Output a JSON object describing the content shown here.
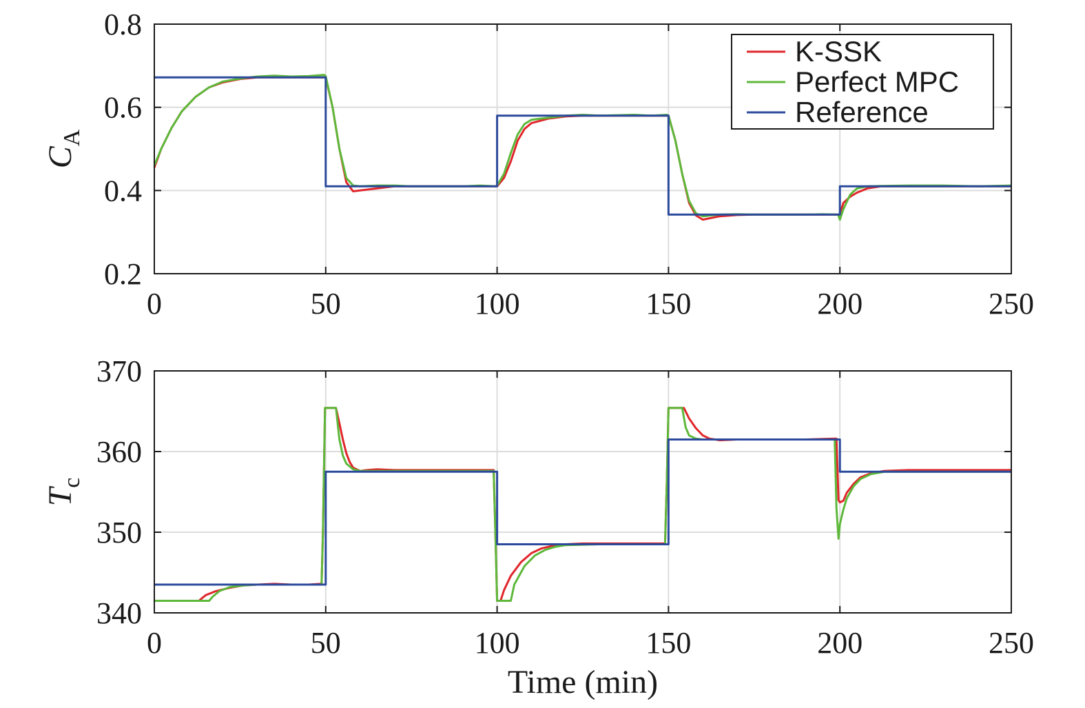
{
  "chart_data": [
    {
      "type": "line",
      "ylabel": "C",
      "ylabel_sub": "A",
      "xlabel": "",
      "xlim": [
        0,
        250
      ],
      "ylim": [
        0.2,
        0.8
      ],
      "xticks": [
        "0",
        "50",
        "100",
        "150",
        "200",
        "250"
      ],
      "yticks": [
        "0.2",
        "0.4",
        "0.6",
        "0.8"
      ],
      "grid": true,
      "legend_position": "top-right",
      "series": [
        {
          "name": "K-SSK",
          "color": "#e0262b",
          "x": [
            0,
            2,
            5,
            8,
            12,
            16,
            20,
            25,
            30,
            35,
            40,
            45,
            49.5,
            50,
            52,
            54,
            56,
            58,
            60,
            65,
            70,
            75,
            80,
            85,
            90,
            95,
            99.5,
            100,
            102,
            104,
            106,
            108,
            110,
            115,
            120,
            125,
            130,
            135,
            140,
            145,
            149.5,
            150,
            152,
            154,
            156,
            158,
            160,
            165,
            170,
            175,
            180,
            185,
            190,
            195,
            199.5,
            200,
            201,
            203,
            205,
            208,
            212,
            220,
            230,
            240,
            250
          ],
          "y": [
            0.455,
            0.5,
            0.55,
            0.59,
            0.625,
            0.648,
            0.66,
            0.668,
            0.672,
            0.672,
            0.672,
            0.672,
            0.672,
            0.672,
            0.6,
            0.5,
            0.42,
            0.398,
            0.4,
            0.405,
            0.41,
            0.41,
            0.41,
            0.41,
            0.41,
            0.41,
            0.41,
            0.41,
            0.43,
            0.47,
            0.52,
            0.548,
            0.562,
            0.573,
            0.578,
            0.58,
            0.58,
            0.58,
            0.58,
            0.58,
            0.58,
            0.58,
            0.52,
            0.44,
            0.37,
            0.34,
            0.33,
            0.338,
            0.341,
            0.342,
            0.342,
            0.342,
            0.342,
            0.342,
            0.342,
            0.342,
            0.37,
            0.385,
            0.395,
            0.405,
            0.41,
            0.41,
            0.41,
            0.41,
            0.41
          ]
        },
        {
          "name": "Perfect MPC",
          "color": "#5db83a",
          "x": [
            0,
            2,
            5,
            8,
            12,
            16,
            20,
            25,
            30,
            35,
            40,
            45,
            49.5,
            50,
            52,
            54,
            56,
            58,
            60,
            65,
            70,
            75,
            80,
            85,
            90,
            95,
            99.5,
            100,
            102,
            104,
            106,
            108,
            110,
            115,
            120,
            125,
            130,
            135,
            140,
            145,
            149.5,
            150,
            152,
            154,
            156,
            158,
            160,
            165,
            170,
            175,
            180,
            185,
            190,
            195,
            199.5,
            200,
            201,
            203,
            205,
            208,
            212,
            220,
            230,
            240,
            250
          ],
          "y": [
            0.46,
            0.5,
            0.55,
            0.59,
            0.625,
            0.648,
            0.662,
            0.669,
            0.674,
            0.676,
            0.674,
            0.675,
            0.678,
            0.675,
            0.6,
            0.5,
            0.43,
            0.412,
            0.41,
            0.412,
            0.412,
            0.41,
            0.41,
            0.41,
            0.41,
            0.412,
            0.41,
            0.412,
            0.44,
            0.49,
            0.535,
            0.56,
            0.57,
            0.575,
            0.58,
            0.582,
            0.58,
            0.581,
            0.582,
            0.58,
            0.582,
            0.58,
            0.52,
            0.44,
            0.375,
            0.345,
            0.338,
            0.342,
            0.343,
            0.342,
            0.342,
            0.342,
            0.342,
            0.343,
            0.342,
            0.33,
            0.355,
            0.39,
            0.405,
            0.41,
            0.411,
            0.412,
            0.412,
            0.41,
            0.412
          ]
        },
        {
          "name": "Reference",
          "color": "#2b4a9b",
          "x": [
            0,
            50,
            50,
            100,
            100,
            150,
            150,
            200,
            200,
            250
          ],
          "y": [
            0.672,
            0.672,
            0.41,
            0.41,
            0.58,
            0.58,
            0.342,
            0.342,
            0.41,
            0.41
          ]
        }
      ]
    },
    {
      "type": "line",
      "ylabel": "T",
      "ylabel_sub": "c",
      "xlabel": "Time (min)",
      "xlim": [
        0,
        250
      ],
      "ylim": [
        340,
        370
      ],
      "xticks": [
        "0",
        "50",
        "100",
        "150",
        "200",
        "250"
      ],
      "yticks": [
        "340",
        "350",
        "360",
        "370"
      ],
      "grid": true,
      "series": [
        {
          "name": "K-SSK",
          "color": "#e0262b",
          "x": [
            0,
            13,
            15,
            18,
            22,
            26,
            30,
            35,
            40,
            45,
            48.8,
            49.2,
            49.8,
            50,
            53,
            54,
            55,
            56,
            57,
            58,
            60,
            62,
            65,
            70,
            75,
            80,
            85,
            90,
            95,
            99,
            99.5,
            100,
            100.5,
            101,
            102,
            104,
            107,
            110,
            113,
            116,
            120,
            125,
            130,
            140,
            149,
            149.5,
            150,
            153,
            154.5,
            156,
            158,
            160,
            162,
            165,
            170,
            180,
            190,
            198.5,
            199,
            199.6,
            200,
            201,
            202,
            204,
            206,
            209,
            213,
            220,
            230,
            240,
            250
          ],
          "y": [
            341.5,
            341.5,
            342.2,
            342.7,
            343.1,
            343.4,
            343.5,
            343.6,
            343.5,
            343.5,
            343.6,
            350,
            365.4,
            365.4,
            365.4,
            363.5,
            361.5,
            359.8,
            358.7,
            358.0,
            357.6,
            357.7,
            357.8,
            357.7,
            357.7,
            357.7,
            357.7,
            357.7,
            357.7,
            357.7,
            350,
            341.5,
            341.5,
            341.5,
            342.8,
            344.6,
            346.3,
            347.4,
            348.0,
            348.3,
            348.5,
            348.6,
            348.6,
            348.6,
            348.6,
            356,
            365.4,
            365.4,
            365.4,
            364.1,
            362.9,
            362.0,
            361.6,
            361.4,
            361.5,
            361.5,
            361.5,
            361.6,
            361.6,
            354,
            353.7,
            353.9,
            354.9,
            356.0,
            356.8,
            357.3,
            357.6,
            357.7,
            357.7,
            357.7,
            357.7
          ]
        },
        {
          "name": "Perfect MPC",
          "color": "#5db83a",
          "x": [
            0,
            16,
            17,
            19,
            22,
            26,
            30,
            40,
            48.8,
            49.2,
            49.8,
            50,
            53,
            54,
            55,
            56,
            58,
            60,
            65,
            70,
            80,
            90,
            99,
            99.5,
            100,
            100.5,
            101,
            103,
            104,
            105,
            108,
            111,
            114,
            117,
            120,
            130,
            140,
            149,
            149.5,
            150,
            153,
            154,
            155,
            156,
            158,
            160,
            165,
            170,
            180,
            190,
            198.5,
            199,
            199.6,
            200,
            201,
            202,
            204,
            206,
            209,
            213,
            220,
            230,
            240,
            250
          ],
          "y": [
            341.5,
            341.5,
            342.0,
            342.7,
            343.2,
            343.4,
            343.5,
            343.5,
            343.5,
            350,
            365.4,
            365.4,
            365.4,
            361.5,
            359.5,
            358.5,
            357.8,
            357.6,
            357.6,
            357.6,
            357.6,
            357.6,
            357.6,
            350,
            341.5,
            341.5,
            341.5,
            341.5,
            341.5,
            343.5,
            345.8,
            347.1,
            347.8,
            348.2,
            348.4,
            348.5,
            348.5,
            348.5,
            356,
            365.4,
            365.4,
            365.4,
            363.0,
            362.0,
            361.6,
            361.5,
            361.5,
            361.5,
            361.5,
            361.5,
            361.5,
            353,
            349.2,
            351.0,
            352.8,
            354.2,
            355.7,
            356.6,
            357.2,
            357.5,
            357.5,
            357.5,
            357.5,
            357.5
          ]
        },
        {
          "name": "Reference",
          "color": "#2b4a9b",
          "x": [
            0,
            50,
            50,
            100,
            100,
            150,
            150,
            200,
            200,
            250
          ],
          "y": [
            343.5,
            343.5,
            357.5,
            357.5,
            348.5,
            348.5,
            361.5,
            361.5,
            357.5,
            357.5
          ]
        }
      ]
    }
  ]
}
